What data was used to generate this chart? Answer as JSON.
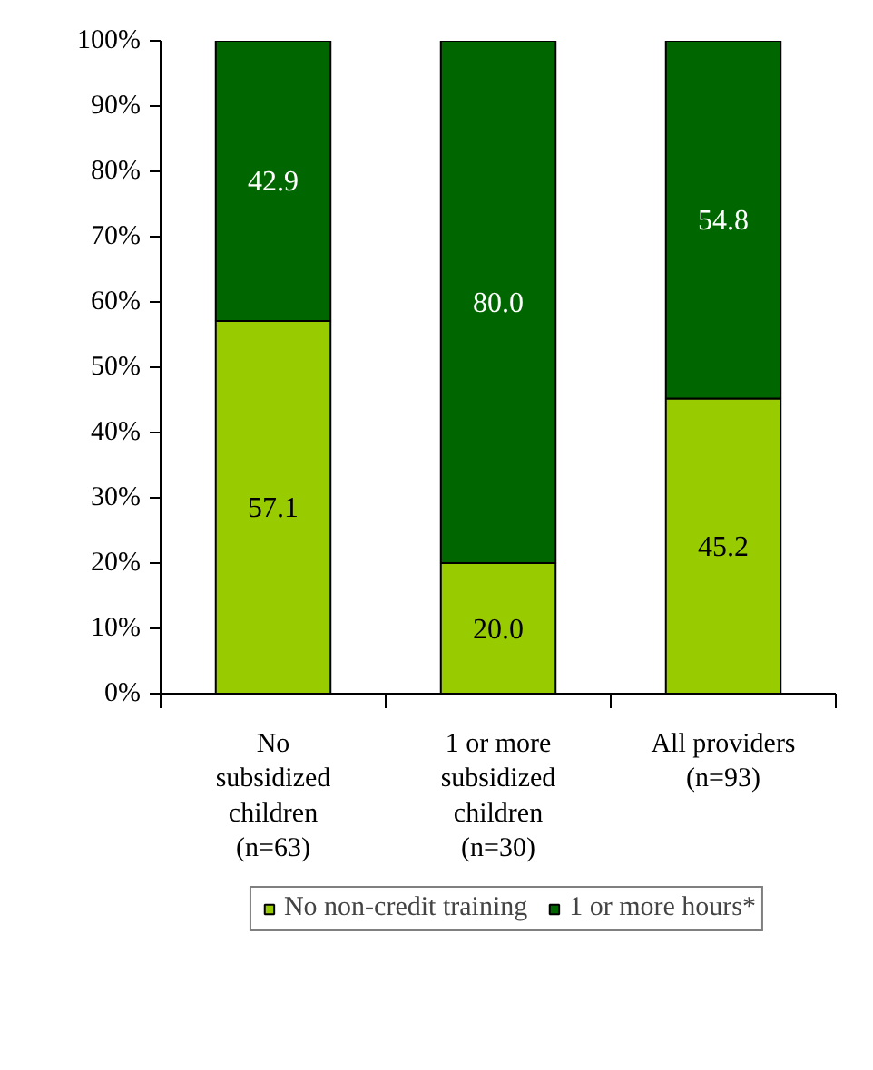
{
  "chart_data": {
    "type": "bar",
    "stacked": true,
    "categories": [
      "No\nsubsidized\nchildren\n(n=63)",
      "1 or more\nsubsidized\nchildren\n(n=30)",
      "All providers\n(n=93)"
    ],
    "series": [
      {
        "name": "No non-credit training",
        "color": "#99cc00",
        "values": [
          57.1,
          20.0,
          45.2
        ],
        "value_labels": [
          "57.1",
          "20.0",
          "45.2"
        ]
      },
      {
        "name": "1 or more hours*",
        "color": "#006600",
        "values": [
          42.9,
          80.0,
          54.8
        ],
        "value_labels": [
          "42.9",
          "80.0",
          "54.8"
        ]
      }
    ],
    "ylim": [
      0,
      100
    ],
    "yticks": [
      {
        "value": 0,
        "label": "0%"
      },
      {
        "value": 10,
        "label": "10%"
      },
      {
        "value": 20,
        "label": "20%"
      },
      {
        "value": 30,
        "label": "30%"
      },
      {
        "value": 40,
        "label": "40%"
      },
      {
        "value": 50,
        "label": "50%"
      },
      {
        "value": 60,
        "label": "60%"
      },
      {
        "value": 70,
        "label": "70%"
      },
      {
        "value": 80,
        "label": "80%"
      },
      {
        "value": 90,
        "label": "90%"
      },
      {
        "value": 100,
        "label": "100%"
      }
    ],
    "grid": false,
    "legend": "bottom"
  }
}
